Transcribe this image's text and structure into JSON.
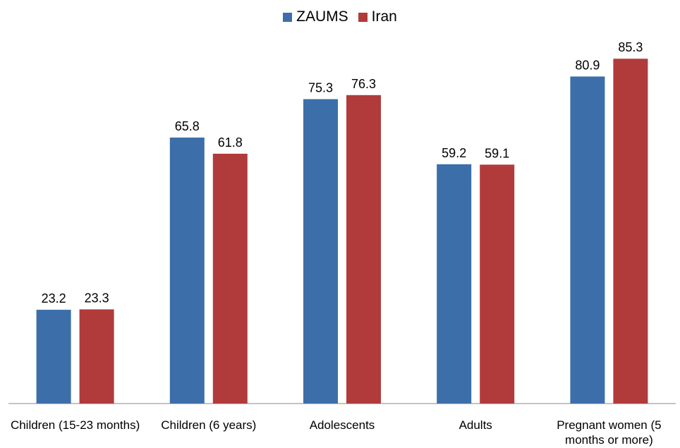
{
  "chart_data": {
    "type": "bar",
    "categories": [
      "Children (15-23 months)",
      "Children (6 years)",
      "Adolescents",
      "Adults",
      "Pregnant women  (5 months or more)"
    ],
    "series": [
      {
        "name": "ZAUMS",
        "color": "#3C6FA9",
        "values": [
          23.2,
          65.8,
          75.3,
          59.2,
          80.9
        ]
      },
      {
        "name": "Iran",
        "color": "#B13B3B",
        "values": [
          23.3,
          61.8,
          76.3,
          59.1,
          85.3
        ]
      }
    ],
    "ylim": [
      0,
      100
    ],
    "grid": false,
    "legend_position": "top-center",
    "data_labels": true
  }
}
